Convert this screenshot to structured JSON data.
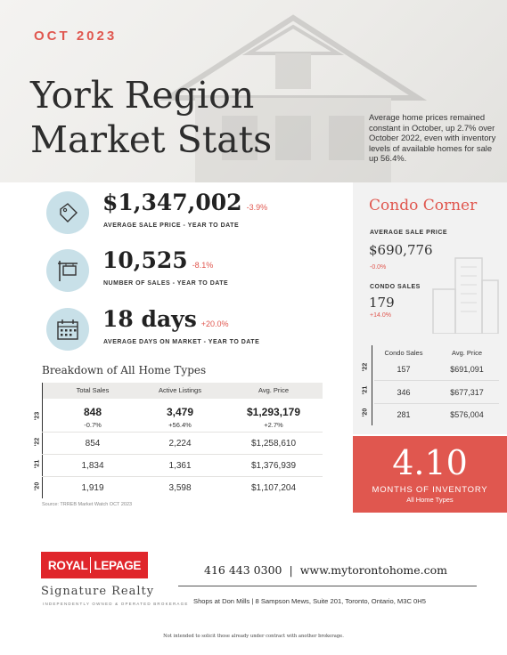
{
  "header": {
    "month": "OCT 2023",
    "title_line1": "York Region",
    "title_line2": "Market Stats",
    "intro": "Average home prices remained constant in October, up 2.7% over October 2022, even with inventory levels of available homes for sale up 56.4%."
  },
  "stats": [
    {
      "value": "$1,347,002",
      "change": "-3.9%",
      "label": "AVERAGE SALE PRICE - YEAR TO DATE",
      "icon": "price-tag-icon"
    },
    {
      "value": "10,525",
      "change": "-8.1%",
      "label": "NUMBER OF SALES - YEAR TO DATE",
      "icon": "sale-sign-icon"
    },
    {
      "value": "18 days",
      "change": "+20.0%",
      "label": "AVERAGE DAYS ON MARKET - YEAR TO DATE",
      "icon": "calendar-icon"
    }
  ],
  "breakdown": {
    "title": "Breakdown of All Home Types",
    "headers": [
      "Total Sales",
      "Active Listings",
      "Avg. Price"
    ],
    "rows": [
      {
        "year": "'23",
        "cells": [
          "848",
          "3,479",
          "$1,293,179"
        ],
        "changes": [
          "-0.7%",
          "+56.4%",
          "+2.7%"
        ]
      },
      {
        "year": "'22",
        "cells": [
          "854",
          "2,224",
          "$1,258,610"
        ]
      },
      {
        "year": "'21",
        "cells": [
          "1,834",
          "1,361",
          "$1,376,939"
        ]
      },
      {
        "year": "'20",
        "cells": [
          "1,919",
          "3,598",
          "$1,107,204"
        ]
      }
    ],
    "source": "Source: TRREB Market Watch OCT 2023"
  },
  "condo": {
    "title": "Condo Corner",
    "avg_price_label": "AVERAGE SALE PRICE",
    "avg_price": "$690,776",
    "avg_price_change": "-0.0%",
    "sales_label": "CONDO SALES",
    "sales": "179",
    "sales_change": "+14.0%",
    "table_headers": [
      "Condo Sales",
      "Avg. Price"
    ],
    "rows": [
      {
        "year": "'22",
        "sales": "157",
        "price": "$691,091"
      },
      {
        "year": "'21",
        "sales": "346",
        "price": "$677,317"
      },
      {
        "year": "'20",
        "sales": "281",
        "price": "$576,004"
      }
    ]
  },
  "inventory": {
    "value": "4.10",
    "label": "MONTHS OF INVENTORY",
    "sub": "All Home Types"
  },
  "footer": {
    "logo_left": "ROYAL",
    "logo_right": "LEPAGE",
    "logo_sub": "Signature Realty",
    "logo_tag": "INDEPENDENTLY OWNED & OPERATED BROKERAGE",
    "phone": "416 443 0300",
    "separator": "|",
    "website": "www.mytorontohome.com",
    "address": "Shops at Don Mills  |  8 Sampson Mews, Suite 201, Toronto, Ontario, M3C 0H5",
    "disclaimer": "Not intended to solicit those already under contract with another brokerage."
  },
  "colors": {
    "accent": "#e0574f",
    "icon_bg": "#c8e0e8",
    "logo_red": "#e0262b"
  }
}
